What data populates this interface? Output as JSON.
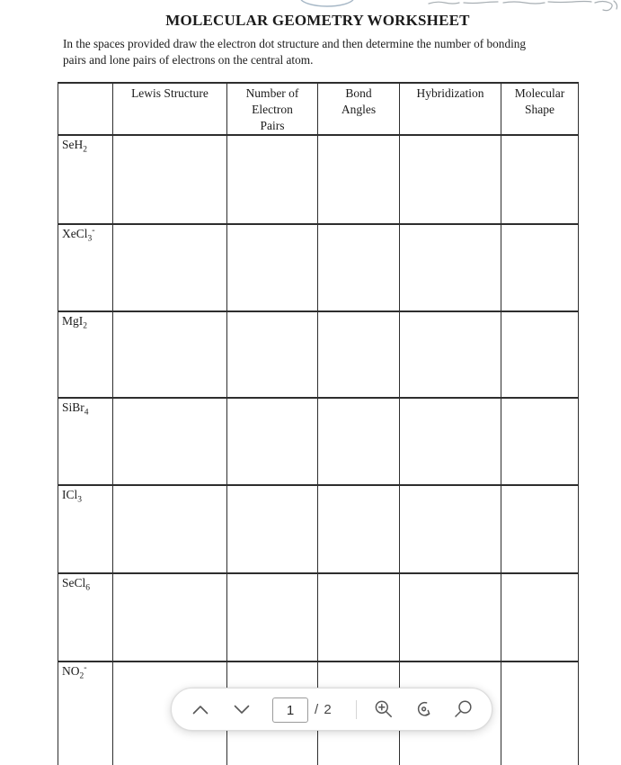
{
  "document": {
    "title": "MOLECULAR GEOMETRY WORKSHEET",
    "instructions_lines": [
      "In the spaces provided draw the electron dot structure and then determine the number of bonding",
      "pairs and lone pairs of electrons on the central atom."
    ]
  },
  "worksheet_table": {
    "headers": [
      {
        "lines": []
      },
      {
        "lines": [
          "Lewis Structure"
        ]
      },
      {
        "lines": [
          "Number of",
          "Electron",
          "Pairs"
        ]
      },
      {
        "lines": [
          "Bond",
          "Angles"
        ]
      },
      {
        "lines": [
          "Hybridization"
        ]
      },
      {
        "lines": [
          "Molecular",
          "Shape"
        ]
      }
    ],
    "rows": [
      {
        "formula_main": "SeH",
        "formula_sub": "2",
        "formula_sup": ""
      },
      {
        "formula_main": "XeCl",
        "formula_sub": "3",
        "formula_sup": "-"
      },
      {
        "formula_main": "MgI",
        "formula_sub": "2",
        "formula_sup": ""
      },
      {
        "formula_main": "SiBr",
        "formula_sub": "4",
        "formula_sup": ""
      },
      {
        "formula_main": "ICl",
        "formula_sub": "3",
        "formula_sup": ""
      },
      {
        "formula_main": "SeCl",
        "formula_sub": "6",
        "formula_sup": ""
      },
      {
        "formula_main": "NO",
        "formula_sub": "2",
        "formula_sup": "-"
      }
    ],
    "answer_columns": 5
  },
  "toolbar": {
    "page_input_value": "1",
    "page_total_label": "/ 2",
    "icons": {
      "previous_page": "chevron-up-icon",
      "next_page": "chevron-down-icon",
      "zoom_in": "zoom-in-icon",
      "rotate": "rotate-icon",
      "search": "search-icon"
    }
  },
  "colors": {
    "table_border": "#2e2e2e",
    "toolbar_icon": "#575757",
    "toolbar_border": "#dcdcdc",
    "annotation_blue": "#a6b7c6",
    "annotation_gray": "#9aa2a7"
  }
}
